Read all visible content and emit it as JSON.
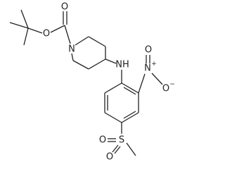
{
  "atoms": [
    {
      "label": "O"
    },
    {
      "label": "O"
    },
    {
      "label": "N"
    },
    {
      "label": "NH"
    },
    {
      "label": "N",
      "charge": "+"
    },
    {
      "label": "O"
    },
    {
      "label": "O",
      "charge": "−"
    },
    {
      "label": "S"
    },
    {
      "label": "O"
    },
    {
      "label": "O"
    }
  ]
}
